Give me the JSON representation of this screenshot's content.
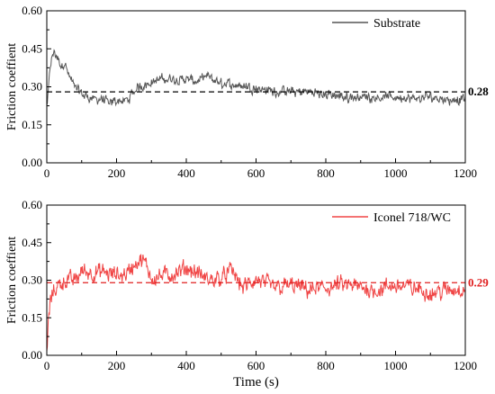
{
  "chart_data": [
    {
      "type": "line",
      "panel": "top",
      "xlabel": "",
      "ylabel": "Friction coeffient",
      "xlim": [
        0,
        1200
      ],
      "ylim": [
        0,
        0.6
      ],
      "xticks": [
        "0",
        "200",
        "400",
        "600",
        "800",
        "1000",
        "1200"
      ],
      "yticks": [
        "0.00",
        "0.15",
        "0.30",
        "0.45",
        "0.60"
      ],
      "legend_position": "top-right",
      "grid": false,
      "series": [
        {
          "name": "Substrate",
          "color": "#555555",
          "x": [
            0,
            10,
            20,
            30,
            40,
            50,
            60,
            70,
            80,
            100,
            120,
            140,
            160,
            180,
            200,
            220,
            240,
            260,
            280,
            300,
            330,
            360,
            400,
            430,
            460,
            500,
            540,
            580,
            620,
            660,
            700,
            750,
            800,
            850,
            900,
            950,
            1000,
            1050,
            1100,
            1150,
            1200
          ],
          "y": [
            0.22,
            0.4,
            0.44,
            0.41,
            0.38,
            0.4,
            0.35,
            0.32,
            0.3,
            0.27,
            0.26,
            0.25,
            0.25,
            0.23,
            0.25,
            0.24,
            0.26,
            0.3,
            0.31,
            0.32,
            0.33,
            0.33,
            0.33,
            0.32,
            0.34,
            0.31,
            0.31,
            0.3,
            0.29,
            0.28,
            0.28,
            0.28,
            0.27,
            0.26,
            0.26,
            0.26,
            0.26,
            0.25,
            0.26,
            0.25,
            0.25
          ],
          "noise": 0.025
        }
      ],
      "mean_line": {
        "value": 0.28,
        "label": "0.28",
        "color": "#000000"
      }
    },
    {
      "type": "line",
      "panel": "bottom",
      "xlabel": "Time (s)",
      "ylabel": "Friction coeffient",
      "xlim": [
        0,
        1200
      ],
      "ylim": [
        0,
        0.6
      ],
      "xticks": [
        "0",
        "200",
        "400",
        "600",
        "800",
        "1000",
        "1200"
      ],
      "yticks": [
        "0.00",
        "0.15",
        "0.30",
        "0.45",
        "0.60"
      ],
      "legend_position": "top-right",
      "grid": false,
      "series": [
        {
          "name": "Iconel 718/WC",
          "color": "#f04545",
          "x": [
            0,
            5,
            15,
            30,
            50,
            80,
            100,
            130,
            160,
            200,
            230,
            260,
            280,
            300,
            340,
            380,
            400,
            430,
            460,
            500,
            530,
            560,
            600,
            650,
            700,
            750,
            800,
            850,
            900,
            950,
            1000,
            1050,
            1100,
            1150,
            1200
          ],
          "y": [
            0.02,
            0.18,
            0.25,
            0.28,
            0.3,
            0.3,
            0.34,
            0.33,
            0.33,
            0.32,
            0.33,
            0.38,
            0.37,
            0.31,
            0.32,
            0.33,
            0.35,
            0.33,
            0.3,
            0.31,
            0.34,
            0.27,
            0.3,
            0.27,
            0.28,
            0.26,
            0.27,
            0.28,
            0.27,
            0.26,
            0.28,
            0.27,
            0.25,
            0.26,
            0.27
          ],
          "noise": 0.045
        }
      ],
      "mean_line": {
        "value": 0.29,
        "label": "0.29",
        "color": "#e02020"
      }
    }
  ]
}
